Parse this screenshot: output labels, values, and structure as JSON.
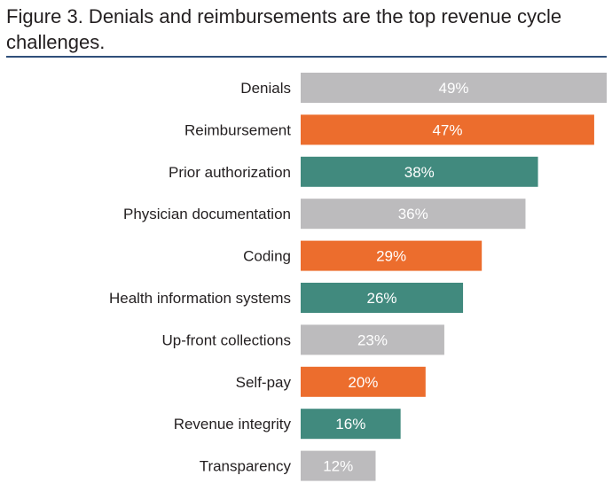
{
  "title": "Figure 3. Denials and reimbursements are the top revenue cycle challenges.",
  "colors": {
    "gray": "#bcbbbd",
    "orange": "#ec6d2d",
    "teal": "#418a7e",
    "rule": "#2f4f7a",
    "text": "#231f20"
  },
  "chart_data": {
    "type": "bar",
    "orientation": "horizontal",
    "categories": [
      "Denials",
      "Reimbursement",
      "Prior authorization",
      "Physician documentation",
      "Coding",
      "Health information systems",
      "Up-front collections",
      "Self-pay",
      "Revenue integrity",
      "Transparency"
    ],
    "values": [
      49,
      47,
      38,
      36,
      29,
      26,
      23,
      20,
      16,
      12
    ],
    "value_labels": [
      "49%",
      "47%",
      "38%",
      "36%",
      "29%",
      "26%",
      "23%",
      "20%",
      "16%",
      "12%"
    ],
    "bar_colors": [
      "gray",
      "orange",
      "teal",
      "gray",
      "orange",
      "teal",
      "gray",
      "orange",
      "teal",
      "gray"
    ],
    "xlim": [
      0,
      49
    ],
    "grid": false,
    "legend": "none"
  }
}
